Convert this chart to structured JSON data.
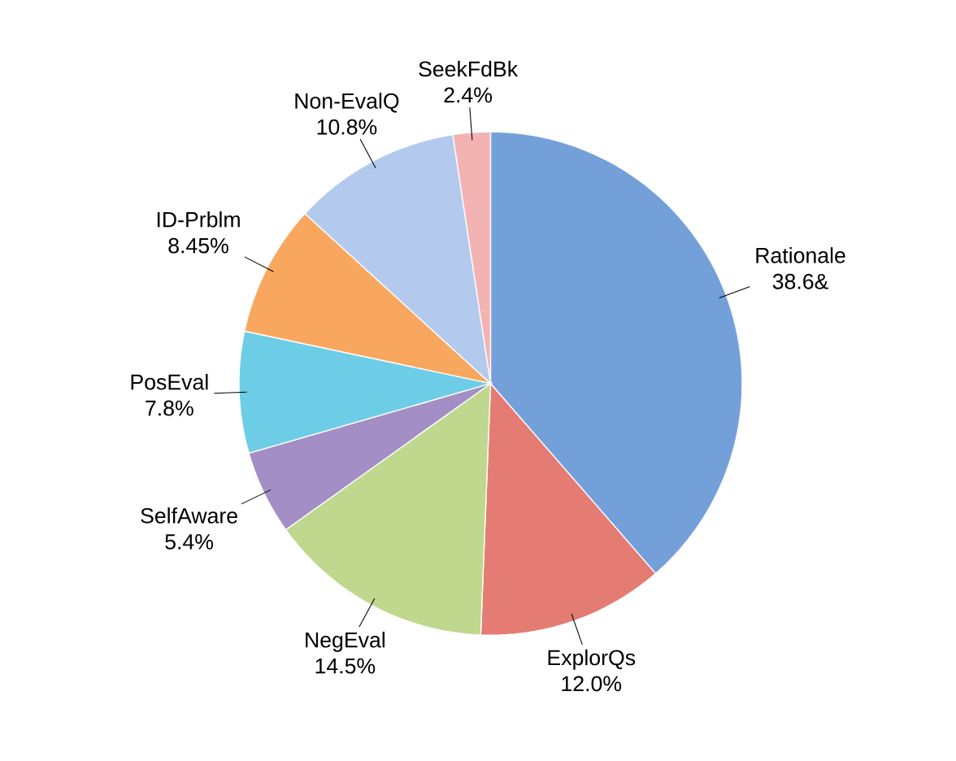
{
  "chart_data": {
    "type": "pie",
    "categories": [
      "Rationale",
      "ExplorQs",
      "NegEval",
      "SelfAware",
      "PosEval",
      "ID-Prblm",
      "Non-EvalQ",
      "SeekFdBk"
    ],
    "values": [
      38.6,
      12.0,
      14.5,
      5.4,
      7.8,
      8.45,
      10.8,
      2.4
    ],
    "value_labels": [
      "38.6&",
      "12.0%",
      "14.5%",
      "5.4%",
      "7.8%",
      "8.45%",
      "10.8%",
      "2.4%"
    ],
    "colors": [
      "#74a0da",
      "#e47c74",
      "#bfd88e",
      "#a48ec6",
      "#6ecde6",
      "#f9a75e",
      "#b3caee",
      "#f4b3b3"
    ]
  }
}
